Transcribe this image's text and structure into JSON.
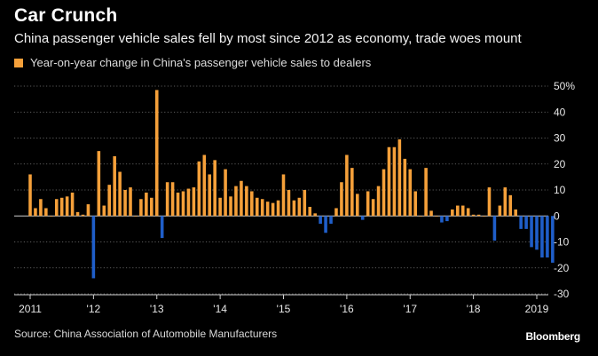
{
  "title": "Car Crunch",
  "subtitle": "China passenger vehicle sales fell by most since 2012 as economy, trade woes mount",
  "source": "Source: China Association of Automobile Manufacturers",
  "brand": "Bloomberg",
  "colors": {
    "positive": "#f5a03a",
    "negative": "#1f5ec9",
    "background": "#000000",
    "grid": "#7a7a7a"
  },
  "chart_data": {
    "type": "bar",
    "title": "",
    "xlabel": "",
    "ylabel": "",
    "ylim": [
      -30,
      50
    ],
    "yticks": [
      50,
      40,
      30,
      20,
      10,
      0,
      -10,
      -20,
      -30
    ],
    "ytick_labels": [
      "50%",
      "40",
      "30",
      "20",
      "10",
      "0",
      "-10",
      "-20",
      "-30"
    ],
    "grid": true,
    "legend": "top-left",
    "series": [
      {
        "name": "Year-on-year change in China's passenger vehicle sales to dealers",
        "start": "2011-01",
        "values": [
          16,
          3,
          6.5,
          3,
          0,
          6.5,
          7,
          7.5,
          9,
          1.5,
          0.5,
          4.5,
          -24,
          25,
          4,
          12,
          23,
          17,
          10,
          11,
          0,
          6.5,
          9,
          7,
          48.5,
          -8.5,
          13,
          13,
          9,
          9.5,
          10.5,
          11,
          21,
          23.5,
          16,
          21.5,
          7,
          18,
          7.5,
          11.5,
          13.5,
          11.5,
          9.5,
          7,
          6.5,
          5.5,
          5,
          6,
          16,
          10,
          6,
          7,
          10,
          3.5,
          1,
          -3,
          -6.5,
          -3,
          3,
          13,
          23.5,
          18.5,
          8.5,
          -1.5,
          9.5,
          6.5,
          11.5,
          18,
          26.5,
          26.5,
          29.5,
          22,
          18,
          9.5,
          0,
          18.5,
          2,
          0,
          -2.5,
          -2,
          2.5,
          4,
          4,
          3,
          0.5,
          0.5,
          0,
          11,
          -9.5,
          4,
          11,
          8,
          2.5,
          -5,
          -5,
          -12,
          -13,
          -16,
          -16,
          -18
        ]
      }
    ],
    "x_ticks": [
      {
        "label": "2011",
        "index": 0
      },
      {
        "label": "'12",
        "index": 12
      },
      {
        "label": "'13",
        "index": 24
      },
      {
        "label": "'14",
        "index": 36
      },
      {
        "label": "'15",
        "index": 48
      },
      {
        "label": "'16",
        "index": 60
      },
      {
        "label": "'17",
        "index": 72
      },
      {
        "label": "'18",
        "index": 84
      },
      {
        "label": "2019",
        "index": 96
      }
    ]
  }
}
